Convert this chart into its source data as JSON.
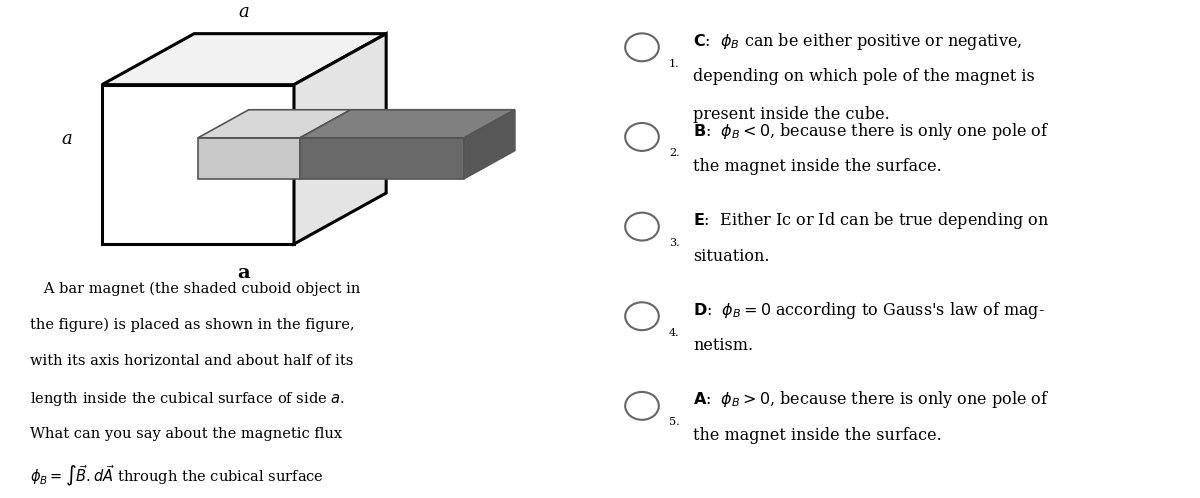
{
  "bg_left": "#ffffff",
  "bg_right": "#d3d3d3",
  "cube_edge_color": "#000000",
  "label_a_top": "a",
  "label_a_left": "a",
  "label_a_bottom": "a",
  "options": [
    {
      "num": "1.",
      "label": "C",
      "text1": "C:  $\\phi_B$ can be either positive or negative,",
      "text2": "depending on which pole of the magnet is",
      "text3": "present inside the cube."
    },
    {
      "num": "2.",
      "label": "B",
      "text1": "B:  $\\phi_B < 0$, because there is only one pole of",
      "text2": "the magnet inside the surface.",
      "text3": ""
    },
    {
      "num": "3.",
      "label": "E",
      "text1": "E:  Either Ic or Id can be true depending on",
      "text2": "situation.",
      "text3": ""
    },
    {
      "num": "4.",
      "label": "D",
      "text1": "D:  $\\phi_B = 0$ according to Gauss's law of mag-",
      "text2": "netism.",
      "text3": ""
    },
    {
      "num": "5.",
      "label": "A",
      "text1": "A:  $\\phi_B > 0$, because there is only one pole of",
      "text2": "the magnet inside the surface.",
      "text3": ""
    }
  ],
  "font_size_desc": 10.5,
  "font_size_options": 11.5,
  "font_family": "serif"
}
